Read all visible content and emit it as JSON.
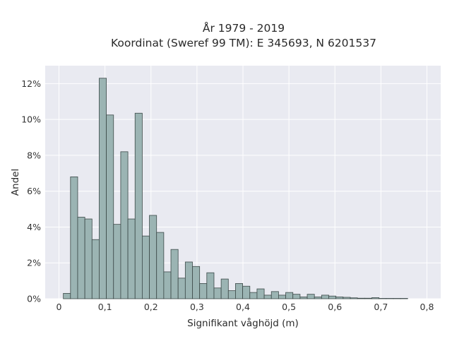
{
  "chart_data": {
    "type": "bar",
    "title_line1": "År 1979 - 2019",
    "title_line2": "Koordinat (Sweref 99 TM): E 345693, N 6201537",
    "xlabel": "Signifikant våghöjd (m)",
    "ylabel": "Andel",
    "xlim": [
      -0.03,
      0.83
    ],
    "ylim": [
      0,
      13
    ],
    "xticks": [
      0,
      0.1,
      0.2,
      0.3,
      0.4,
      0.5,
      0.6,
      0.7,
      0.8
    ],
    "xtick_labels": [
      "0",
      "0,1",
      "0,2",
      "0,3",
      "0,4",
      "0,5",
      "0,6",
      "0,7",
      "0,8"
    ],
    "yticks": [
      0,
      2,
      4,
      6,
      8,
      10,
      12
    ],
    "ytick_labels": [
      "0%",
      "2%",
      "4%",
      "6%",
      "8%",
      "10%",
      "12%"
    ],
    "bin_width": 0.0156,
    "bin_start": 0.0094,
    "values": [
      0.3,
      6.8,
      4.55,
      4.45,
      3.3,
      12.3,
      10.25,
      4.15,
      8.2,
      4.45,
      10.35,
      3.5,
      4.65,
      3.7,
      1.5,
      2.75,
      1.15,
      2.05,
      1.8,
      0.85,
      1.45,
      0.6,
      1.1,
      0.45,
      0.85,
      0.7,
      0.35,
      0.55,
      0.2,
      0.4,
      0.2,
      0.35,
      0.25,
      0.1,
      0.25,
      0.1,
      0.2,
      0.15,
      0.1,
      0.08,
      0.05,
      0.03,
      0.03,
      0.06,
      0.02,
      0.02,
      0.02,
      0.02
    ],
    "grid": true,
    "colors": {
      "background": "#e9eaf1",
      "bar_fill": "#9bb4b3",
      "bar_edge": "#3c4948",
      "grid": "#ffffff"
    }
  }
}
